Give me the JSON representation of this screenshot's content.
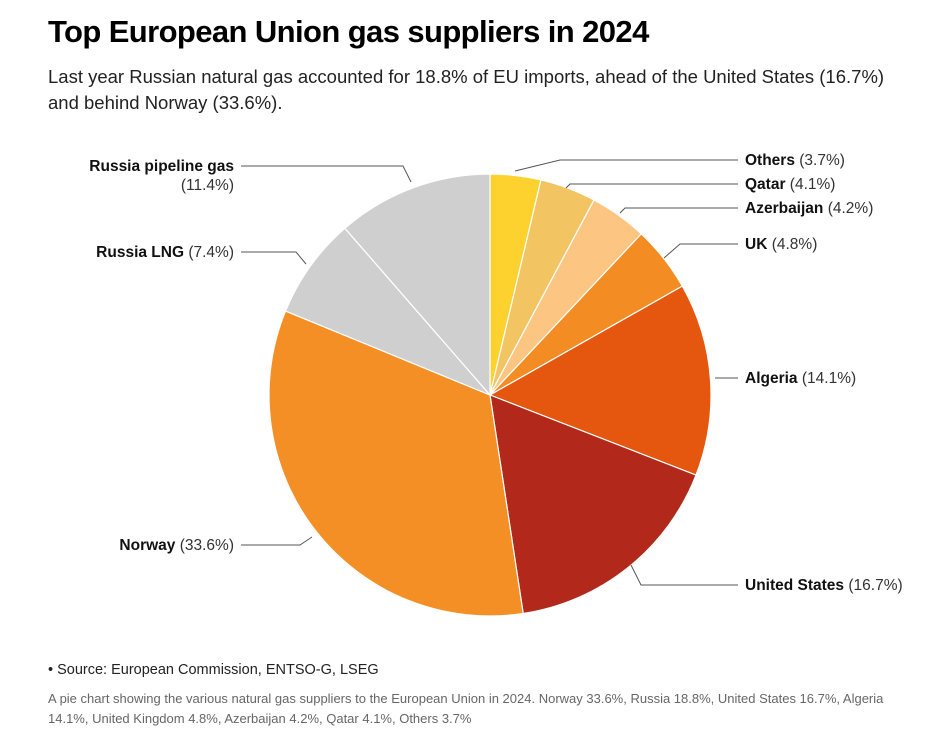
{
  "title": "Top European Union gas suppliers in 2024",
  "subtitle": "Last year Russian natural gas accounted for 18.8% of EU imports, ahead of the United States (16.7%) and behind Norway (33.6%).",
  "source": "• Source: European Commission, ENTSO-G, LSEG",
  "description": "A pie chart showing the various natural gas suppliers to the European Union in 2024. Norway 33.6%, Russia 18.8%, United States 16.7%, Algeria 14.1%, United Kingdom 4.8%, Azerbaijan 4.2%, Qatar 4.1%, Others 3.7%",
  "chart_data": {
    "type": "pie",
    "start": "12 o'clock",
    "direction": "clockwise",
    "slices": [
      {
        "label": "Others",
        "value": 3.7,
        "display": "(3.7%)",
        "color": "#fdd22f"
      },
      {
        "label": "Qatar",
        "value": 4.1,
        "display": "(4.1%)",
        "color": "#f3c562"
      },
      {
        "label": "Azerbaijan",
        "value": 4.2,
        "display": "(4.2%)",
        "color": "#fdc582"
      },
      {
        "label": "UK",
        "value": 4.8,
        "display": "(4.8%)",
        "color": "#f48c24"
      },
      {
        "label": "Algeria",
        "value": 14.1,
        "display": "(14.1%)",
        "color": "#e5560f"
      },
      {
        "label": "United States",
        "value": 16.7,
        "display": "(16.7%)",
        "color": "#b2291b"
      },
      {
        "label": "Norway",
        "value": 33.6,
        "display": "(33.6%)",
        "color": "#f48f26"
      },
      {
        "label": "Russia LNG",
        "value": 7.4,
        "display": "(7.4%)",
        "color": "#cfcfcf"
      },
      {
        "label": "Russia pipeline gas",
        "value": 11.4,
        "display": "(11.4%)",
        "color": "#cfcfcf"
      }
    ]
  }
}
